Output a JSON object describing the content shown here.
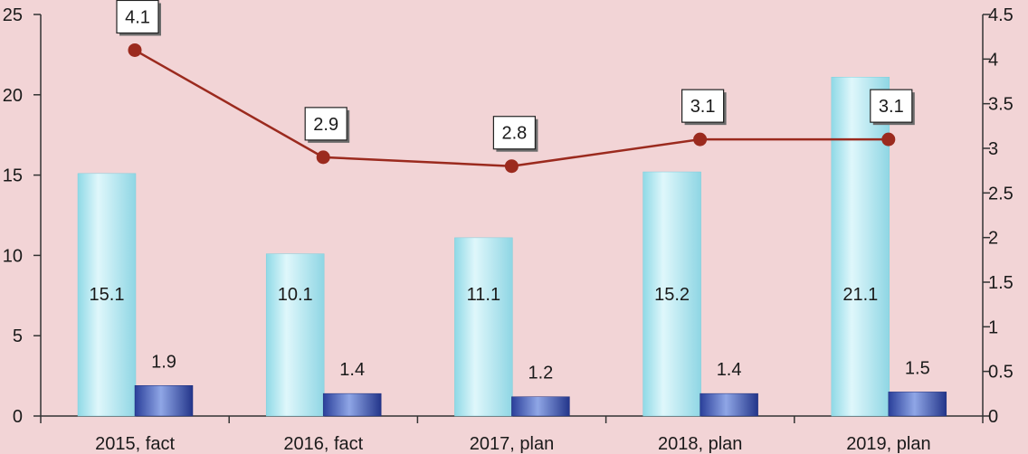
{
  "chart_data": {
    "type": "bar",
    "categories": [
      "2015, fact",
      "2016, fact",
      "2017, plan",
      "2018, plan",
      "2019, plan"
    ],
    "series": [
      {
        "type": "bar",
        "axis": "left",
        "color": "#a8e4ee",
        "values": [
          15.1,
          10.1,
          11.1,
          15.2,
          21.1
        ]
      },
      {
        "type": "bar",
        "axis": "left",
        "color": "#3a4fa8",
        "values": [
          1.9,
          1.4,
          1.2,
          1.4,
          1.5
        ]
      },
      {
        "type": "line",
        "axis": "right",
        "color": "#9b2a1e",
        "values": [
          4.1,
          2.9,
          2.8,
          3.1,
          3.1
        ]
      }
    ],
    "bar_labels_left": [
      "15.1",
      "10.1",
      "11.1",
      "15.2",
      "21.1"
    ],
    "bar_labels_right": [
      "1.9",
      "1.4",
      "1.2",
      "1.4",
      "1.5"
    ],
    "line_labels": [
      "4.1",
      "2.9",
      "2.8",
      "3.1",
      "3.1"
    ],
    "y_left": {
      "ylim": [
        0,
        25
      ],
      "ticks": [
        "0",
        "5",
        "10",
        "15",
        "20",
        "25"
      ]
    },
    "y_right": {
      "ylim": [
        0,
        4.5
      ],
      "ticks": [
        "0",
        "0.5",
        "1",
        "1.5",
        "2",
        "2.5",
        "3",
        "3.5",
        "4",
        "4.5"
      ]
    },
    "title": "",
    "xlabel": "",
    "ylabel": "",
    "grid": false,
    "legend": "none"
  }
}
